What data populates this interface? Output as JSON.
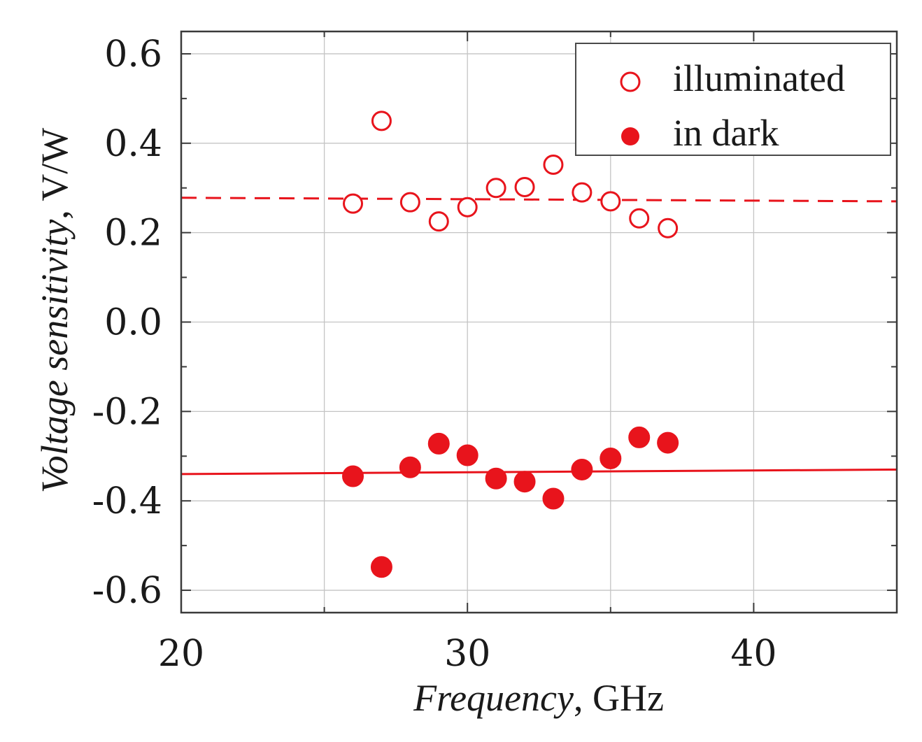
{
  "chart_data": {
    "type": "scatter",
    "xlabel": {
      "italic": "Frequency",
      "rest": ", GHz"
    },
    "ylabel": {
      "italic": "Voltage sensitivity",
      "rest": ", V/W"
    },
    "xlim": [
      20,
      45
    ],
    "ylim": [
      -0.65,
      0.65
    ],
    "xticks": [
      20,
      30,
      40
    ],
    "xtick_labels": [
      "20",
      "30",
      "40"
    ],
    "yticks": [
      0.6,
      0.4,
      0.2,
      0.0,
      -0.2,
      -0.4,
      -0.6
    ],
    "ytick_labels": [
      "0.6",
      "0.4",
      "0.2",
      "0.0",
      "-0.2",
      "-0.4",
      "-0.6"
    ],
    "x_minor_ticks": [
      25,
      35,
      45
    ],
    "y_minor_ticks": [
      0.5,
      0.3,
      0.1,
      -0.1,
      -0.3,
      -0.5
    ],
    "grid": true,
    "legend_position": "top-right",
    "color": "#e8141c",
    "series": [
      {
        "name": "illuminated",
        "marker": "open-circle",
        "x": [
          26,
          27,
          28,
          29,
          30,
          31,
          32,
          33,
          34,
          35,
          36,
          37
        ],
        "y": [
          0.265,
          0.45,
          0.268,
          0.225,
          0.257,
          0.3,
          0.302,
          0.352,
          0.29,
          0.27,
          0.232,
          0.21
        ],
        "fit": {
          "style": "dashed",
          "x": [
            20,
            45
          ],
          "y": [
            0.278,
            0.27
          ]
        }
      },
      {
        "name": "in dark",
        "marker": "filled-circle",
        "x": [
          26,
          27,
          28,
          29,
          30,
          31,
          32,
          33,
          34,
          35,
          36,
          37
        ],
        "y": [
          -0.345,
          -0.548,
          -0.325,
          -0.272,
          -0.298,
          -0.35,
          -0.357,
          -0.395,
          -0.33,
          -0.305,
          -0.258,
          -0.27
        ],
        "fit": {
          "style": "solid",
          "x": [
            20,
            45
          ],
          "y": [
            -0.34,
            -0.33
          ]
        }
      }
    ]
  }
}
